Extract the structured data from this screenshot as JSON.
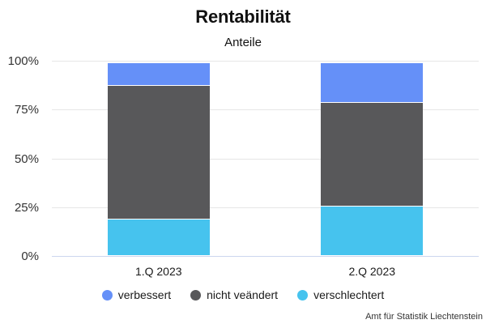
{
  "header": {
    "title": "Rentabilität",
    "subtitle": "Anteile"
  },
  "source": "Amt für Statistik Liechtenstein",
  "colors": {
    "verbessert": "#6590f8",
    "nicht_veaendert": "#58585a",
    "verschlechtert": "#46c3ee",
    "gridline": "#e6e6e6",
    "baseline": "#ccd6ee",
    "text": "#1a1a1a"
  },
  "chart_data": {
    "type": "bar",
    "stacked": true,
    "percent_axis": true,
    "title": "Rentabilität",
    "subtitle": "Anteile",
    "categories": [
      "1.Q 2023",
      "2.Q 2023"
    ],
    "series": [
      {
        "name": "verbessert",
        "color": "#6590f8",
        "values": [
          11.6,
          20.4
        ]
      },
      {
        "name": "nicht veändert",
        "color": "#58585a",
        "values": [
          68.7,
          53.1
        ]
      },
      {
        "name": "verschlechtert",
        "color": "#46c3ee",
        "values": [
          18.2,
          25.0
        ]
      }
    ],
    "xlabel": "",
    "ylabel": "",
    "ylim": [
      0,
      100
    ],
    "yticks": [
      0,
      25,
      50,
      75,
      100
    ],
    "ytick_labels": [
      "0%",
      "25%",
      "50%",
      "75%",
      "100%"
    ],
    "grid": true,
    "legend_position": "bottom",
    "source_note": "Amt für Statistik Liechtenstein"
  }
}
